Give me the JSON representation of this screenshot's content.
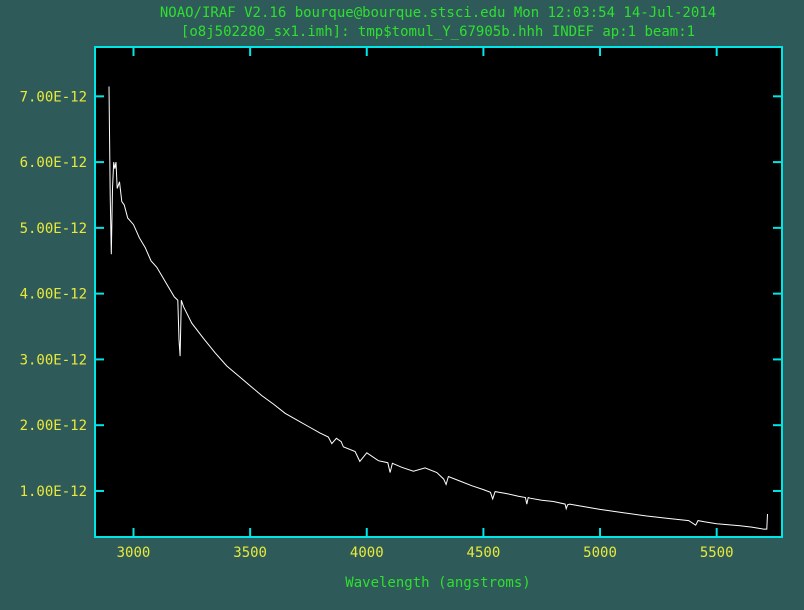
{
  "chart_data": {
    "type": "line",
    "title": "NOAO/IRAF V2.16 bourque@bourque.stsci.edu Mon 12:03:54 14-Jul-2014",
    "subtitle": "[o8j502280_sx1.imh]: tmp$tomul_Y_67905b.hhh INDEF ap:1 beam:1",
    "xlabel": "Wavelength (angstroms)",
    "ylabel": "",
    "xlim": [
      2835,
      5780
    ],
    "ylim": [
      3e-13,
      7.75e-12
    ],
    "x_ticks": [
      3000,
      3500,
      4000,
      4500,
      5000,
      5500
    ],
    "x_tick_labels": [
      "3000",
      "3500",
      "4000",
      "4500",
      "5000",
      "5500"
    ],
    "y_ticks": [
      1e-12,
      2e-12,
      3e-12,
      4e-12,
      5e-12,
      6e-12,
      7e-12
    ],
    "y_tick_labels": [
      "1.00E-12",
      "2.00E-12",
      "3.00E-12",
      "4.00E-12",
      "5.00E-12",
      "6.00E-12",
      "7.00E-12"
    ],
    "grid": false,
    "series": [
      {
        "name": "",
        "x": [
          2895,
          2900,
          2905,
          2910,
          2915,
          2920,
          2925,
          2930,
          2940,
          2950,
          2960,
          2975,
          3000,
          3025,
          3050,
          3075,
          3100,
          3125,
          3150,
          3175,
          3190,
          3195,
          3200,
          3205,
          3215,
          3250,
          3300,
          3350,
          3400,
          3450,
          3500,
          3550,
          3600,
          3650,
          3700,
          3750,
          3800,
          3835,
          3850,
          3870,
          3890,
          3900,
          3950,
          3970,
          4000,
          4050,
          4090,
          4100,
          4110,
          4150,
          4200,
          4250,
          4300,
          4330,
          4340,
          4350,
          4400,
          4450,
          4500,
          4530,
          4540,
          4550,
          4600,
          4650,
          4680,
          4686,
          4692,
          4700,
          4750,
          4800,
          4850,
          4855,
          4861,
          4870,
          4900,
          5000,
          5100,
          5200,
          5300,
          5380,
          5410,
          5420,
          5450,
          5500,
          5600,
          5650,
          5700,
          5715,
          5718
        ],
        "y": [
          7.15e-12,
          5.5e-12,
          4.6e-12,
          5.6e-12,
          6e-12,
          5.9e-12,
          6e-12,
          5.6e-12,
          5.7e-12,
          5.4e-12,
          5.35e-12,
          5.15e-12,
          5.05e-12,
          4.85e-12,
          4.7e-12,
          4.5e-12,
          4.4e-12,
          4.25e-12,
          4.1e-12,
          3.95e-12,
          3.9e-12,
          3.3e-12,
          3.05e-12,
          3.9e-12,
          3.8e-12,
          3.55e-12,
          3.32e-12,
          3.1e-12,
          2.9e-12,
          2.75e-12,
          2.6e-12,
          2.45e-12,
          2.32e-12,
          2.18e-12,
          2.08e-12,
          1.98e-12,
          1.88e-12,
          1.82e-12,
          1.72e-12,
          1.8e-12,
          1.75e-12,
          1.67e-12,
          1.6e-12,
          1.45e-12,
          1.58e-12,
          1.46e-12,
          1.43e-12,
          1.28e-12,
          1.42e-12,
          1.36e-12,
          1.3e-12,
          1.35e-12,
          1.28e-12,
          1.18e-12,
          1.1e-12,
          1.22e-12,
          1.15e-12,
          1.08e-12,
          1.02e-12,
          9.8e-13,
          8.8e-13,
          9.9e-13,
          9.6e-13,
          9.2e-13,
          9e-13,
          8e-13,
          9e-13,
          8.9e-13,
          8.6e-13,
          8.4e-13,
          8e-13,
          7.3e-13,
          7.9e-13,
          8e-13,
          7.8e-13,
          7.2e-13,
          6.7e-13,
          6.2e-13,
          5.8e-13,
          5.5e-13,
          4.8e-13,
          5.5e-13,
          5.3e-13,
          5e-13,
          4.7e-13,
          4.5e-13,
          4.2e-13,
          4.2e-13,
          6.5e-13
        ]
      }
    ]
  }
}
